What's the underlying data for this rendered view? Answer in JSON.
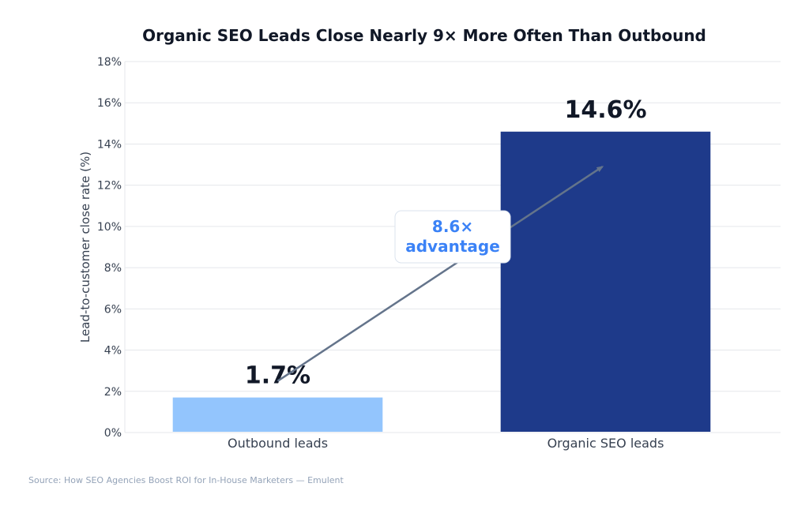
{
  "chart_data": {
    "type": "bar",
    "title": "Organic SEO Leads Close Nearly 9× More Often Than Outbound",
    "xlabel": "",
    "ylabel": "Lead-to-customer close rate (%)",
    "categories": [
      "Outbound leads",
      "Organic SEO leads"
    ],
    "values": [
      1.7,
      14.6
    ],
    "value_labels": [
      "1.7%",
      "14.6%"
    ],
    "ylim": [
      0,
      18
    ],
    "yticks": [
      0,
      2,
      4,
      6,
      8,
      10,
      12,
      14,
      16,
      18
    ],
    "ytick_labels": [
      "0%",
      "2%",
      "4%",
      "6%",
      "8%",
      "10%",
      "12%",
      "14%",
      "16%",
      "18%"
    ],
    "grid": true,
    "colors": [
      "#93c5fd",
      "#1e3a8a"
    ],
    "annotation": {
      "line1": "8.6×",
      "line2": "advantage",
      "color": "#3b82f6",
      "arrow_color": "#64748b"
    }
  },
  "source": "Source: How SEO Agencies Boost ROI for In-House Marketers — Emulent"
}
